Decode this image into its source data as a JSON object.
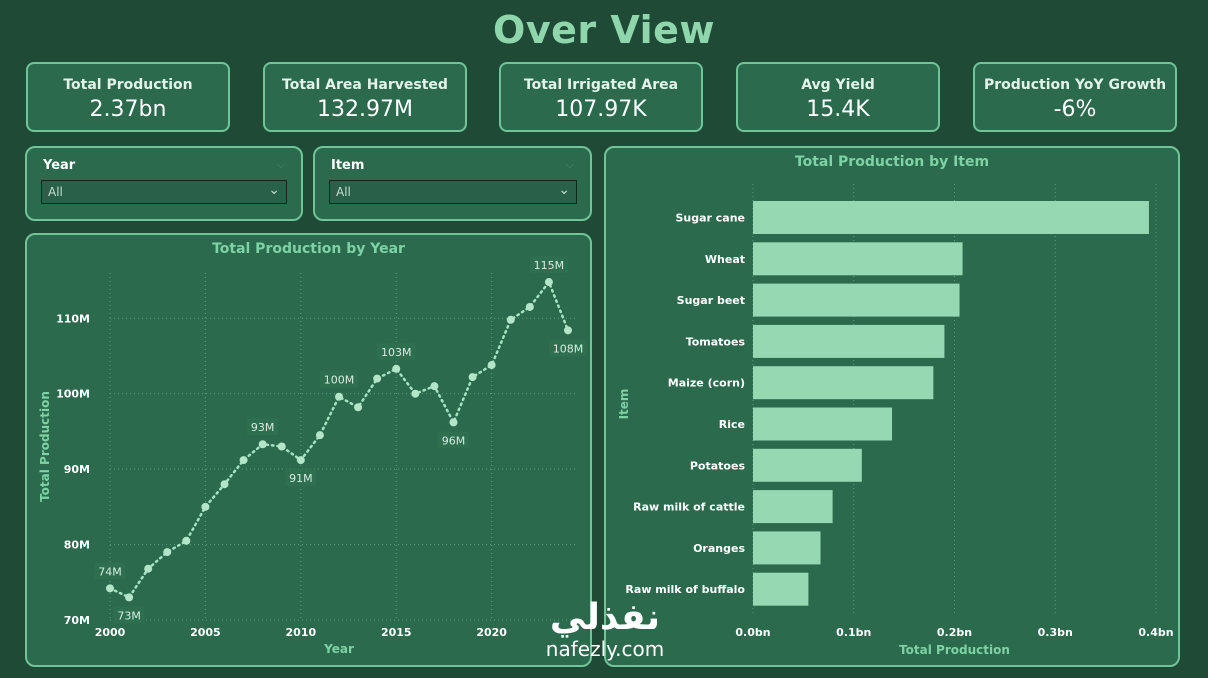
{
  "title": "Over View",
  "kpis": [
    {
      "label": "Total Production",
      "value": "2.37bn"
    },
    {
      "label": "Total Area Harvested",
      "value": "132.97M"
    },
    {
      "label": "Total Irrigated Area",
      "value": "107.97K"
    },
    {
      "label": "Avg Yield",
      "value": "15.4K"
    },
    {
      "label": "Production YoY Growth",
      "value": "-6%"
    }
  ],
  "filters": [
    {
      "label": "Year",
      "value": "All"
    },
    {
      "label": "Item",
      "value": "All"
    }
  ],
  "icons": {
    "caret": "chevron-down-icon"
  },
  "colors": {
    "background": "#1f4a36",
    "panel": "#2b6a4c",
    "border": "#6fc498",
    "accent": "#8fd6ad",
    "bars": "#95d8b2"
  },
  "watermark": {
    "arabic": "نفذلي",
    "latin": "nafezly.com"
  },
  "chart_data": [
    {
      "type": "line",
      "title": "Total Production by Year",
      "xlabel": "Year",
      "ylabel": "Total Production",
      "x": [
        2000,
        2001,
        2002,
        2003,
        2004,
        2005,
        2006,
        2007,
        2008,
        2009,
        2010,
        2011,
        2012,
        2013,
        2014,
        2015,
        2016,
        2017,
        2018,
        2019,
        2020,
        2021,
        2022,
        2023,
        2024
      ],
      "values": [
        74.2,
        73.0,
        76.8,
        79.0,
        80.5,
        85.0,
        88.0,
        91.2,
        93.3,
        93.0,
        91.2,
        94.5,
        99.6,
        98.2,
        102.0,
        103.3,
        100.0,
        101.0,
        96.2,
        102.2,
        103.8,
        109.8,
        111.5,
        114.8,
        108.4
      ],
      "data_labels": [
        {
          "x": 2000,
          "text": "74M"
        },
        {
          "x": 2001,
          "text": "73M"
        },
        {
          "x": 2008,
          "text": "93M"
        },
        {
          "x": 2010,
          "text": "91M"
        },
        {
          "x": 2012,
          "text": "100M"
        },
        {
          "x": 2015,
          "text": "103M"
        },
        {
          "x": 2018,
          "text": "96M"
        },
        {
          "x": 2023,
          "text": "115M"
        },
        {
          "x": 2024,
          "text": "108M"
        }
      ],
      "xticks": [
        2000,
        2005,
        2010,
        2015,
        2020
      ],
      "yticks": [
        70,
        80,
        90,
        100,
        110
      ],
      "ytick_labels": [
        "70M",
        "80M",
        "90M",
        "100M",
        "110M"
      ],
      "ylim": [
        70,
        116
      ],
      "grid": true
    },
    {
      "type": "bar",
      "title": "Total Production by Item",
      "xlabel": "Total Production",
      "ylabel": "Item",
      "orientation": "horizontal",
      "categories": [
        "Sugar cane",
        "Wheat",
        "Sugar beet",
        "Tomatoes",
        "Maize (corn)",
        "Rice",
        "Potatoes",
        "Raw milk of cattle",
        "Oranges",
        "Raw milk of buffalo"
      ],
      "values": [
        0.393,
        0.208,
        0.205,
        0.19,
        0.179,
        0.138,
        0.108,
        0.079,
        0.067,
        0.055
      ],
      "xticks": [
        0,
        0.1,
        0.2,
        0.3,
        0.4
      ],
      "xtick_labels": [
        "0.0bn",
        "0.1bn",
        "0.2bn",
        "0.3bn",
        "0.4bn"
      ],
      "xlim": [
        0,
        0.4
      ],
      "grid": true
    }
  ]
}
